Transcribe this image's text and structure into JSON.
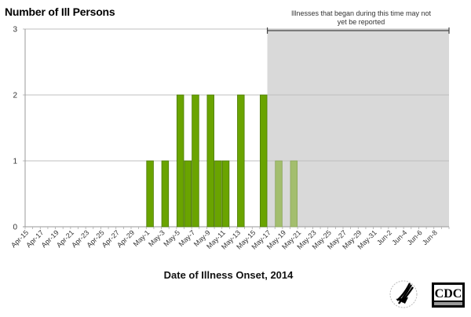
{
  "chart_data": {
    "type": "bar",
    "title": "",
    "ylabel": "Number of Ill Persons",
    "xlabel": "Date of Illness Onset, 2014",
    "ylim": [
      0,
      3
    ],
    "yticks": [
      0,
      1,
      2,
      3
    ],
    "grid": true,
    "x_tick_labels": [
      "Apr-15",
      "Apr-17",
      "Apr-19",
      "Apr-21",
      "Apr-23",
      "Apr-25",
      "Apr-27",
      "Apr-29",
      "May-1",
      "May-3",
      "May-5",
      "May-7",
      "May-9",
      "May-11",
      "May-13",
      "May-15",
      "May-17",
      "May-19",
      "May-21",
      "May-23",
      "May-25",
      "May-27",
      "May-29",
      "May-31",
      "Jun-2",
      "Jun-4",
      "Jun-6",
      "Jun-8"
    ],
    "date_range": {
      "start": "Apr-15",
      "end": "Jun-9",
      "days": 56
    },
    "categories": [
      "May-1",
      "May-3",
      "May-5",
      "May-6",
      "May-7",
      "May-9",
      "May-10",
      "May-11",
      "May-13",
      "May-16",
      "May-18",
      "May-20"
    ],
    "values": [
      1,
      1,
      2,
      1,
      2,
      2,
      1,
      1,
      2,
      2,
      1,
      1
    ],
    "bars": [
      {
        "date": "May-1",
        "day_index": 16,
        "count": 1,
        "reported": true
      },
      {
        "date": "May-3",
        "day_index": 18,
        "count": 1,
        "reported": true
      },
      {
        "date": "May-5",
        "day_index": 20,
        "count": 2,
        "reported": true
      },
      {
        "date": "May-6",
        "day_index": 21,
        "count": 1,
        "reported": true
      },
      {
        "date": "May-7",
        "day_index": 22,
        "count": 2,
        "reported": true
      },
      {
        "date": "May-9",
        "day_index": 24,
        "count": 2,
        "reported": true
      },
      {
        "date": "May-10",
        "day_index": 25,
        "count": 1,
        "reported": true
      },
      {
        "date": "May-11",
        "day_index": 26,
        "count": 1,
        "reported": true
      },
      {
        "date": "May-13",
        "day_index": 28,
        "count": 2,
        "reported": true
      },
      {
        "date": "May-16",
        "day_index": 31,
        "count": 2,
        "reported": true
      },
      {
        "date": "May-18",
        "day_index": 33,
        "count": 1,
        "reported": false
      },
      {
        "date": "May-20",
        "day_index": 35,
        "count": 1,
        "reported": false
      }
    ],
    "shaded_region": {
      "start_day_index": 32,
      "end_day_index": 56,
      "label": "Illnesses that began during this time may not yet be reported"
    },
    "colors": {
      "bar": "#6aa400",
      "bar_outline": "#4a7a00",
      "bar_pending": "#a3be6e",
      "bar_pending_outline": "#8aa55a",
      "shaded": "#d9d9d9",
      "grid": "#bfbfbf"
    }
  },
  "labels": {
    "y_title": "Number of Ill Persons",
    "x_title": "Date of Illness Onset, 2014",
    "annotation_line1": "Illnesses that began during this time may not",
    "annotation_line2": "yet be reported"
  },
  "logos": {
    "hhs": "HHS eagle seal",
    "cdc": "CDC"
  }
}
